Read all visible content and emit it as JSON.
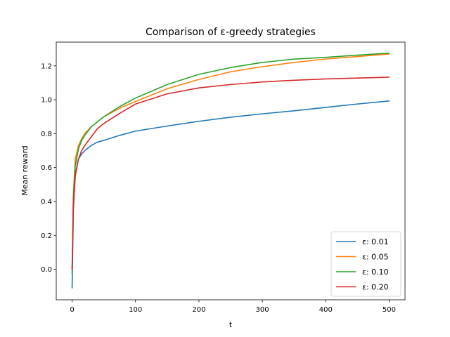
{
  "chart_data": {
    "type": "line",
    "title": "Comparison of ε-greedy strategies",
    "xlabel": "t",
    "ylabel": "Mean reward",
    "xlim": [
      -25,
      525
    ],
    "ylim": [
      -0.18,
      1.34
    ],
    "x_ticks": [
      0,
      100,
      200,
      300,
      400,
      500
    ],
    "y_ticks": [
      0.0,
      0.2,
      0.4,
      0.6,
      0.8,
      1.0,
      1.2
    ],
    "y_tick_labels": [
      "0.0",
      "0.2",
      "0.4",
      "0.6",
      "0.8",
      "1.0",
      "1.2"
    ],
    "grid": false,
    "legend_position": "lower-right",
    "x": [
      0,
      2,
      5,
      10,
      15,
      20,
      30,
      40,
      50,
      75,
      100,
      150,
      200,
      250,
      300,
      350,
      400,
      450,
      500
    ],
    "series": [
      {
        "name": "ε: 0.01",
        "color": "#1f77b4",
        "values": [
          -0.11,
          0.35,
          0.56,
          0.65,
          0.68,
          0.7,
          0.73,
          0.75,
          0.76,
          0.79,
          0.815,
          0.845,
          0.873,
          0.897,
          0.917,
          0.935,
          0.955,
          0.975,
          0.993
        ]
      },
      {
        "name": "ε: 0.05",
        "color": "#ff7f0e",
        "values": [
          0.0,
          0.45,
          0.65,
          0.73,
          0.77,
          0.8,
          0.84,
          0.87,
          0.9,
          0.95,
          0.99,
          1.065,
          1.12,
          1.165,
          1.195,
          1.22,
          1.24,
          1.255,
          1.27
        ]
      },
      {
        "name": "ε: 0.10",
        "color": "#2ca02c",
        "values": [
          -0.03,
          0.42,
          0.61,
          0.71,
          0.76,
          0.79,
          0.84,
          0.87,
          0.9,
          0.96,
          1.01,
          1.09,
          1.15,
          1.19,
          1.22,
          1.24,
          1.25,
          1.263,
          1.275
        ]
      },
      {
        "name": "ε: 0.20",
        "color": "#d62728",
        "values": [
          0.0,
          0.38,
          0.55,
          0.65,
          0.7,
          0.73,
          0.78,
          0.83,
          0.86,
          0.92,
          0.975,
          1.035,
          1.07,
          1.09,
          1.105,
          1.115,
          1.123,
          1.128,
          1.133
        ]
      }
    ]
  }
}
